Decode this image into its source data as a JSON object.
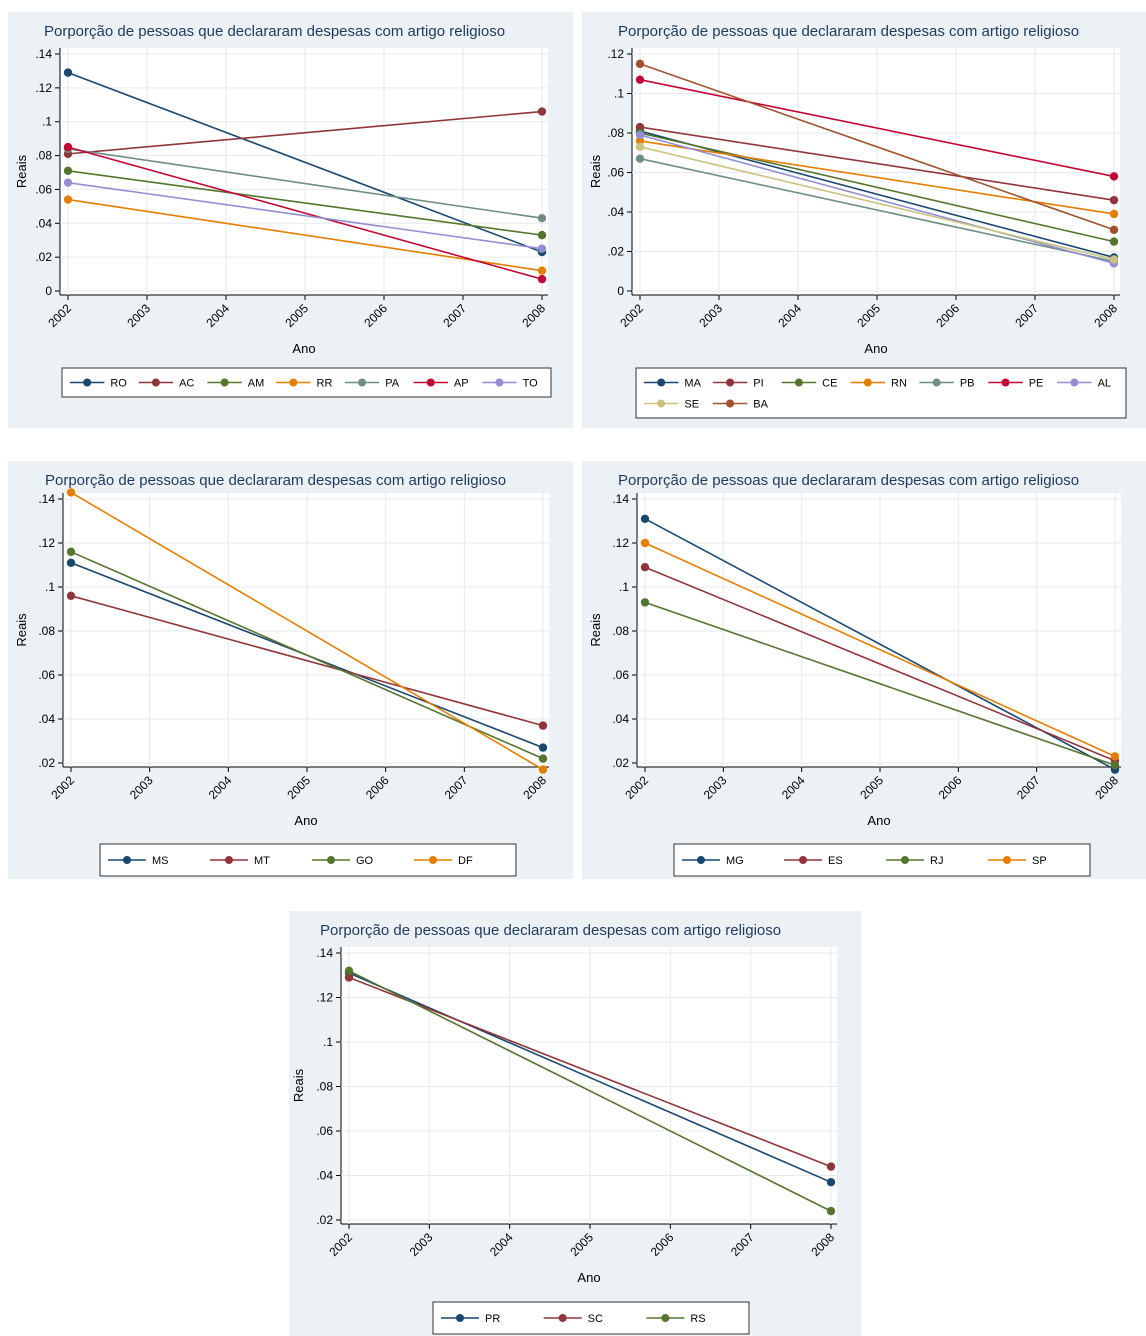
{
  "chart_data": [
    {
      "type": "line",
      "title": "Porporção de pessoas que declararam despesas com artigo religioso",
      "xlabel": "Ano",
      "ylabel": "Reais",
      "x_ticks": [
        "2002",
        "2003",
        "2004",
        "2005",
        "2006",
        "2007",
        "2008"
      ],
      "y_ticks": [
        "0",
        ".02",
        ".04",
        ".06",
        ".08",
        ".1",
        ".12",
        ".14"
      ],
      "ylim": [
        0,
        0.14
      ],
      "x": [
        2002,
        2008
      ],
      "legend_position": "bottom",
      "series": [
        {
          "name": "RO",
          "color": "#1a476f",
          "values": [
            0.129,
            0.023
          ]
        },
        {
          "name": "AC",
          "color": "#90353b",
          "values": [
            0.081,
            0.106
          ]
        },
        {
          "name": "AM",
          "color": "#55752f",
          "values": [
            0.071,
            0.033
          ]
        },
        {
          "name": "RR",
          "color": "#e37e00",
          "values": [
            0.054,
            0.012
          ]
        },
        {
          "name": "PA",
          "color": "#6e8e84",
          "values": [
            0.084,
            0.043
          ]
        },
        {
          "name": "AP",
          "color": "#c10534",
          "values": [
            0.085,
            0.007
          ]
        },
        {
          "name": "TO",
          "color": "#938dd2",
          "values": [
            0.064,
            0.025
          ]
        }
      ]
    },
    {
      "type": "line",
      "title": "Porporção de pessoas que declararam despesas com artigo religioso",
      "xlabel": "Ano",
      "ylabel": "Reais",
      "x_ticks": [
        "2002",
        "2003",
        "2004",
        "2005",
        "2006",
        "2007",
        "2008"
      ],
      "y_ticks": [
        "0",
        ".02",
        ".04",
        ".06",
        ".08",
        ".1",
        ".12"
      ],
      "ylim": [
        0,
        0.12
      ],
      "x": [
        2002,
        2008
      ],
      "legend_position": "bottom",
      "series": [
        {
          "name": "MA",
          "color": "#1a476f",
          "values": [
            0.081,
            0.017
          ]
        },
        {
          "name": "PI",
          "color": "#90353b",
          "values": [
            0.083,
            0.046
          ]
        },
        {
          "name": "CE",
          "color": "#55752f",
          "values": [
            0.08,
            0.025
          ]
        },
        {
          "name": "RN",
          "color": "#e37e00",
          "values": [
            0.076,
            0.039
          ]
        },
        {
          "name": "PB",
          "color": "#6e8e84",
          "values": [
            0.067,
            0.015
          ]
        },
        {
          "name": "PE",
          "color": "#c10534",
          "values": [
            0.107,
            0.058
          ]
        },
        {
          "name": "AL",
          "color": "#938dd2",
          "values": [
            0.079,
            0.014
          ]
        },
        {
          "name": "SE",
          "color": "#cac27e",
          "values": [
            0.073,
            0.016
          ]
        },
        {
          "name": "BA",
          "color": "#a0522d",
          "values": [
            0.115,
            0.031
          ]
        }
      ]
    },
    {
      "type": "line",
      "title": "Porporção de pessoas que declararam despesas com artigo religioso",
      "xlabel": "Ano",
      "ylabel": "Reais",
      "x_ticks": [
        "2002",
        "2003",
        "2004",
        "2005",
        "2006",
        "2007",
        "2008"
      ],
      "y_ticks": [
        ".02",
        ".04",
        ".06",
        ".08",
        ".1",
        ".12",
        ".14"
      ],
      "ylim": [
        0.02,
        0.14
      ],
      "x": [
        2002,
        2008
      ],
      "legend_position": "bottom",
      "series": [
        {
          "name": "MS",
          "color": "#1a476f",
          "values": [
            0.111,
            0.027
          ]
        },
        {
          "name": "MT",
          "color": "#90353b",
          "values": [
            0.096,
            0.037
          ]
        },
        {
          "name": "GO",
          "color": "#55752f",
          "values": [
            0.116,
            0.022
          ]
        },
        {
          "name": "DF",
          "color": "#e37e00",
          "values": [
            0.143,
            0.017
          ]
        }
      ]
    },
    {
      "type": "line",
      "title": "Porporção de pessoas que declararam despesas com artigo religioso",
      "xlabel": "Ano",
      "ylabel": "Reais",
      "x_ticks": [
        "2002",
        "2003",
        "2004",
        "2005",
        "2006",
        "2007",
        "2008"
      ],
      "y_ticks": [
        ".02",
        ".04",
        ".06",
        ".08",
        ".1",
        ".12",
        ".14"
      ],
      "ylim": [
        0.02,
        0.14
      ],
      "x": [
        2002,
        2008
      ],
      "legend_position": "bottom",
      "series": [
        {
          "name": "MG",
          "color": "#1a476f",
          "values": [
            0.131,
            0.017
          ]
        },
        {
          "name": "ES",
          "color": "#90353b",
          "values": [
            0.109,
            0.021
          ]
        },
        {
          "name": "RJ",
          "color": "#55752f",
          "values": [
            0.093,
            0.019
          ]
        },
        {
          "name": "SP",
          "color": "#e37e00",
          "values": [
            0.12,
            0.023
          ]
        }
      ]
    },
    {
      "type": "line",
      "title": "Porporção de pessoas que declararam despesas com artigo religioso",
      "xlabel": "Ano",
      "ylabel": "Reais",
      "x_ticks": [
        "2002",
        "2003",
        "2004",
        "2005",
        "2006",
        "2007",
        "2008"
      ],
      "y_ticks": [
        ".02",
        ".04",
        ".06",
        ".08",
        ".1",
        ".12",
        ".14"
      ],
      "ylim": [
        0.02,
        0.14
      ],
      "x": [
        2002,
        2008
      ],
      "legend_position": "bottom",
      "series": [
        {
          "name": "PR",
          "color": "#1a476f",
          "values": [
            0.131,
            0.037
          ]
        },
        {
          "name": "SC",
          "color": "#90353b",
          "values": [
            0.129,
            0.044
          ]
        },
        {
          "name": "RS",
          "color": "#55752f",
          "values": [
            0.132,
            0.024
          ]
        }
      ]
    }
  ]
}
